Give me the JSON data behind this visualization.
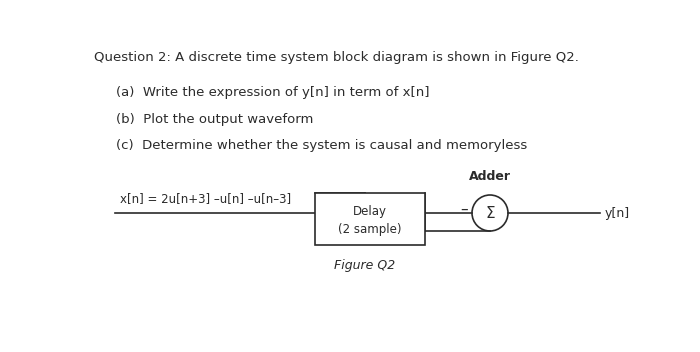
{
  "title": "Question 2: A discrete time system block diagram is shown in Figure Q2.",
  "part_a": "(a)  Write the expression of y[n] in term of x[n]",
  "part_b": "(b)  Plot the output waveform",
  "part_c": "(c)  Determine whether the system is causal and memoryless",
  "input_label": "x[n] = 2u[n+3] –u[n] –u[n–3]",
  "output_label": "y[n]",
  "adder_label": "Adder",
  "adder_symbol": "Σ",
  "minus_label": "–",
  "delay_label1": "Delay",
  "delay_label2": "(2 sample)",
  "figure_label": "Figure Q2",
  "bg_color": "#ffffff",
  "text_color": "#2b2b2b",
  "line_color": "#2b2b2b",
  "box_color": "#ffffff",
  "font_size_title": 9.5,
  "font_size_parts": 9.5,
  "font_size_diagram": 9.0
}
